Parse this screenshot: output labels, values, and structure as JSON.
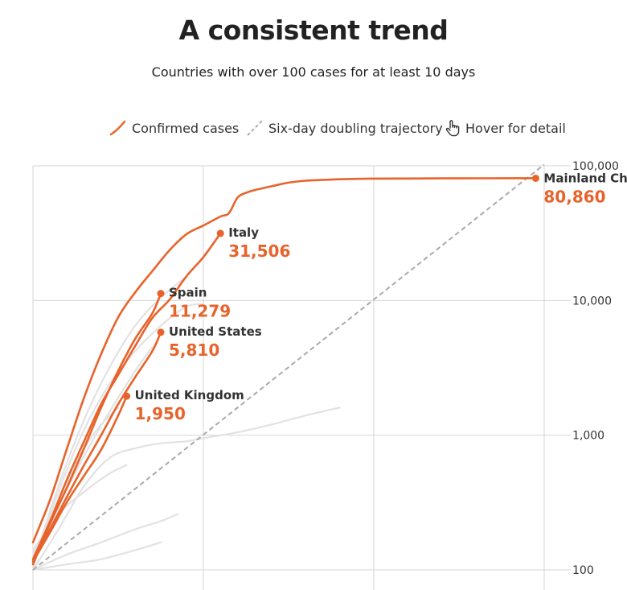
{
  "header": {
    "title": "A consistent trend",
    "subtitle": "Countries with over 100 cases for at least 10 days"
  },
  "legend": {
    "confirmed": "Confirmed cases",
    "doubling": "Six-day doubling trajectory",
    "hover": "Hover for detail"
  },
  "colors": {
    "highlight": "#e8632b",
    "background_series": "#e2e2e2",
    "doubling": "#aaaaaa",
    "grid": "#d6d6d6"
  },
  "chart_data": {
    "type": "line",
    "title": "A consistent trend",
    "subtitle": "Countries with over 100 cases for at least 10 days",
    "y_scale": "log",
    "ylim": [
      100,
      100000
    ],
    "y_ticks": [
      100,
      1000,
      10000,
      100000
    ],
    "y_tick_labels": [
      "100",
      "1,000",
      "10,000",
      "100,000"
    ],
    "xlim": [
      0,
      60
    ],
    "x_gridlines": [
      0,
      20,
      40,
      60
    ],
    "grid": true,
    "legend_position": "top",
    "doubling_line": {
      "name": "Six-day doubling trajectory",
      "x": [
        0,
        60
      ],
      "y": [
        100,
        102400
      ]
    },
    "series": [
      {
        "name": "Mainland China",
        "highlight": true,
        "label_value": "80,860",
        "x": [
          0,
          2,
          4,
          6,
          8,
          10,
          12,
          14,
          16,
          18,
          20,
          22,
          23,
          24,
          25,
          26,
          28,
          30,
          32,
          35,
          38,
          40,
          44,
          48,
          52,
          56,
          59
        ],
        "y": [
          160,
          330,
          800,
          1900,
          4000,
          7500,
          11500,
          16500,
          23500,
          31000,
          36000,
          42000,
          44500,
          58000,
          63000,
          66000,
          70500,
          75000,
          77500,
          79000,
          80000,
          80300,
          80500,
          80700,
          80800,
          80850,
          80860
        ]
      },
      {
        "name": "Italy",
        "highlight": true,
        "label_value": "31,506",
        "x": [
          0,
          2,
          4,
          6,
          8,
          10,
          12,
          14,
          16,
          18,
          20,
          22
        ],
        "y": [
          120,
          229,
          470,
          900,
          1700,
          2800,
          4600,
          7400,
          10100,
          15100,
          21000,
          31506
        ]
      },
      {
        "name": "Spain",
        "highlight": true,
        "label_value": "11,279",
        "x": [
          0,
          2,
          4,
          6,
          8,
          10,
          12,
          14,
          15
        ],
        "y": [
          110,
          220,
          410,
          800,
          1600,
          3000,
          5200,
          8000,
          11279
        ]
      },
      {
        "name": "United States",
        "highlight": true,
        "label_value": "5,810",
        "x": [
          0,
          2,
          4,
          6,
          8,
          10,
          12,
          14,
          15
        ],
        "y": [
          115,
          200,
          350,
          600,
          1000,
          1700,
          2700,
          4200,
          5810
        ]
      },
      {
        "name": "United Kingdom",
        "highlight": true,
        "label_value": "1,950",
        "x": [
          0,
          2,
          4,
          6,
          8,
          10,
          11
        ],
        "y": [
          115,
          190,
          320,
          500,
          780,
          1400,
          1950
        ]
      },
      {
        "highlight": false,
        "x": [
          0,
          3,
          6,
          9,
          12,
          15,
          18,
          20
        ],
        "y": [
          105,
          380,
          1100,
          2400,
          4200,
          6500,
          9000,
          9400
        ]
      },
      {
        "highlight": false,
        "x": [
          0,
          3,
          6,
          9,
          12,
          15,
          18
        ],
        "y": [
          110,
          420,
          1300,
          3200,
          6500,
          10500,
          15000
        ]
      },
      {
        "highlight": false,
        "x": [
          0,
          3,
          6,
          9,
          12,
          14
        ],
        "y": [
          130,
          300,
          700,
          1500,
          3000,
          4500
        ]
      },
      {
        "highlight": false,
        "x": [
          0,
          2,
          4,
          6,
          8,
          10
        ],
        "y": [
          120,
          220,
          450,
          800,
          1200,
          1600
        ]
      },
      {
        "highlight": false,
        "x": [
          0,
          3,
          6,
          9,
          12,
          15,
          18,
          20,
          24,
          28,
          32,
          36
        ],
        "y": [
          100,
          200,
          420,
          680,
          800,
          870,
          900,
          950,
          1050,
          1200,
          1400,
          1600
        ]
      },
      {
        "highlight": false,
        "x": [
          0,
          4,
          8,
          12,
          15,
          17
        ],
        "y": [
          100,
          130,
          160,
          200,
          230,
          260
        ]
      },
      {
        "highlight": false,
        "x": [
          0,
          4,
          8,
          12,
          15
        ],
        "y": [
          100,
          110,
          120,
          140,
          160
        ]
      },
      {
        "highlight": false,
        "x": [
          0,
          3,
          6,
          9,
          11
        ],
        "y": [
          140,
          260,
          380,
          520,
          600
        ]
      }
    ]
  }
}
